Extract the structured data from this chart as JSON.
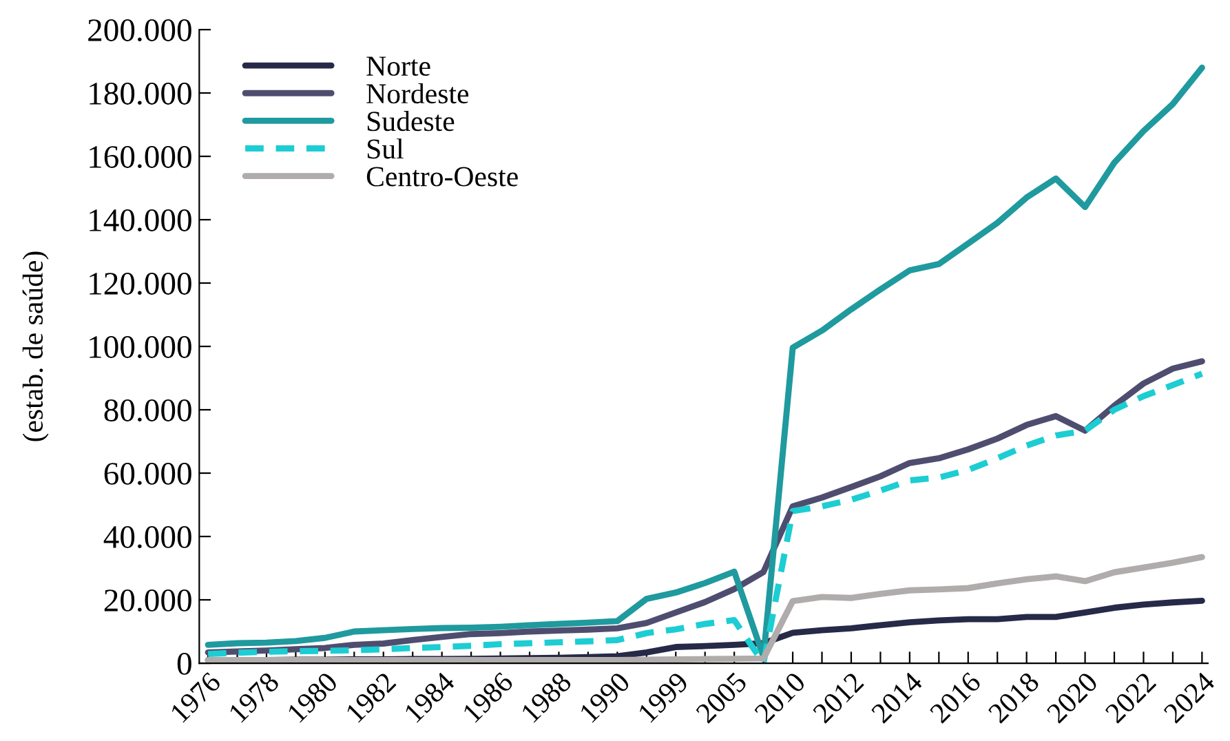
{
  "chart_data": {
    "type": "line",
    "ylabel": "(estab. de saúde)",
    "categories": [
      "1976",
      null,
      "1978",
      null,
      "1980",
      null,
      "1982",
      null,
      "1984",
      null,
      "1986",
      null,
      "1988",
      null,
      "1990",
      null,
      "1999",
      null,
      "2005",
      null,
      "2010",
      null,
      "2012",
      null,
      "2014",
      null,
      "2016",
      null,
      "2018",
      null,
      "2020",
      null,
      "2022",
      null,
      "2024"
    ],
    "series": [
      {
        "name": "Norte",
        "color": "#262a48",
        "line_style": "solid",
        "values": [
          1000,
          1000,
          1000,
          1100,
          1100,
          1200,
          1200,
          1300,
          1300,
          1400,
          1500,
          1600,
          1700,
          1900,
          2200,
          3400,
          5100,
          5400,
          5800,
          6300,
          9600,
          10400,
          11000,
          12000,
          12900,
          13500,
          13900,
          13900,
          14600,
          14600,
          16000,
          17500,
          18500,
          19200,
          19700
        ]
      },
      {
        "name": "Nordeste",
        "color": "#4f4d6f",
        "line_style": "solid",
        "values": [
          3400,
          3700,
          4000,
          4400,
          4800,
          5800,
          6200,
          7300,
          8300,
          9200,
          9500,
          10000,
          10300,
          10600,
          11000,
          12700,
          16000,
          19300,
          23400,
          28800,
          49500,
          52300,
          55600,
          59000,
          63200,
          64700,
          67500,
          70900,
          75200,
          78000,
          73400,
          81300,
          88300,
          93000,
          95300
        ]
      },
      {
        "name": "Sudeste",
        "color": "#1f9a9e",
        "line_style": "solid",
        "values": [
          5800,
          6300,
          6500,
          7000,
          8000,
          10000,
          10400,
          10800,
          11100,
          11200,
          11500,
          12000,
          12400,
          12800,
          13300,
          20300,
          22300,
          25300,
          28900,
          2000,
          99600,
          105000,
          111700,
          118000,
          124000,
          126000,
          132500,
          139000,
          147000,
          153000,
          144000,
          158000,
          168000,
          176500,
          188000
        ]
      },
      {
        "name": "Sul",
        "color": "#1ccdd3",
        "line_style": "dashed",
        "values": [
          2900,
          3300,
          3600,
          3800,
          3900,
          4100,
          4400,
          4800,
          5100,
          5500,
          6000,
          6300,
          6600,
          6900,
          7300,
          9500,
          10700,
          12400,
          13600,
          0,
          48000,
          49500,
          51600,
          54500,
          57700,
          58600,
          61000,
          64700,
          68700,
          71900,
          73400,
          80000,
          84300,
          87800,
          91400
        ]
      },
      {
        "name": "Centro-Oeste",
        "color": "#b0acac",
        "line_style": "solid",
        "values": [
          1000,
          1000,
          1000,
          1000,
          1000,
          1000,
          1000,
          1000,
          1000,
          1000,
          1000,
          1000,
          1000,
          1000,
          1000,
          1100,
          1200,
          1300,
          1400,
          1500,
          19600,
          20900,
          20600,
          21900,
          23000,
          23300,
          23700,
          25200,
          26500,
          27400,
          25900,
          28700,
          30200,
          31700,
          33500
        ]
      }
    ],
    "ylim": [
      0,
      200000
    ],
    "yticks": [
      {
        "value": 0,
        "label": "0"
      },
      {
        "value": 20000,
        "label": "20.000"
      },
      {
        "value": 40000,
        "label": "40.000"
      },
      {
        "value": 60000,
        "label": "60.000"
      },
      {
        "value": 80000,
        "label": "80.000"
      },
      {
        "value": 100000,
        "label": "100.000"
      },
      {
        "value": 120000,
        "label": "120.000"
      },
      {
        "value": 140000,
        "label": "140.000"
      },
      {
        "value": 160000,
        "label": "160.000"
      },
      {
        "value": 180000,
        "label": "180.000"
      },
      {
        "value": 200000,
        "label": "200.000"
      }
    ],
    "grid": false,
    "legend": "top left",
    "marker": "none"
  }
}
